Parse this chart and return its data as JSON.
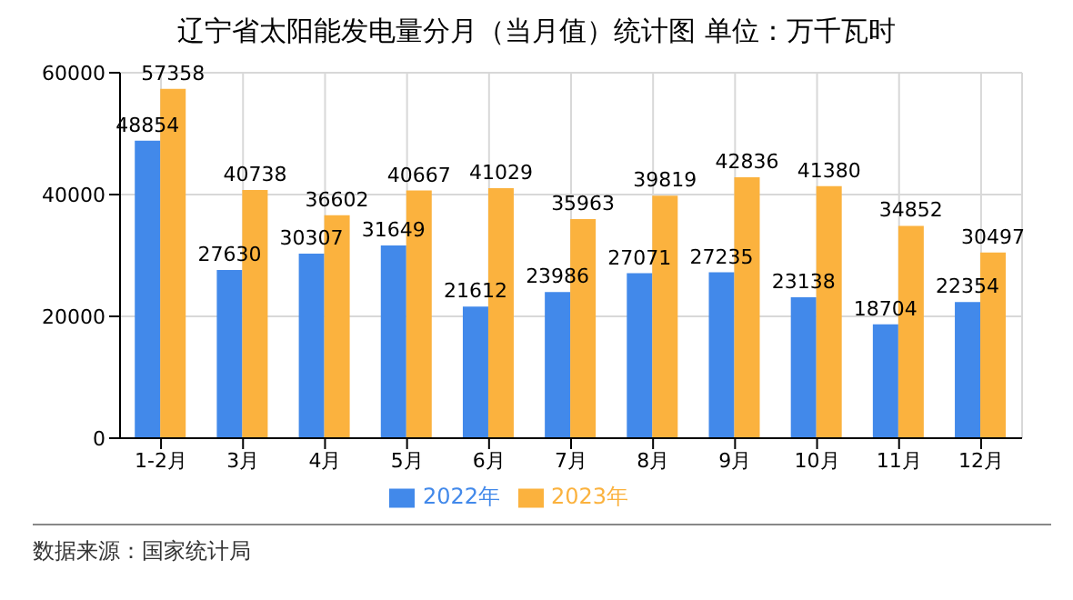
{
  "chart_data": {
    "type": "bar",
    "title": "辽宁省太阳能发电量分月（当月值）统计图 单位：万千瓦时",
    "categories": [
      "1-2月",
      "3月",
      "4月",
      "5月",
      "6月",
      "7月",
      "8月",
      "9月",
      "10月",
      "11月",
      "12月"
    ],
    "series": [
      {
        "name": "2022年",
        "color": "#4289ea",
        "values": [
          48854,
          27630,
          30307,
          31649,
          21612,
          23986,
          27071,
          27235,
          23138,
          18704,
          22354
        ]
      },
      {
        "name": "2023年",
        "color": "#fbb23e",
        "values": [
          57358,
          40738,
          36602,
          40667,
          41029,
          35963,
          39819,
          42836,
          41380,
          34852,
          30497
        ]
      }
    ],
    "ylim": [
      0,
      60000
    ],
    "yticks": [
      0,
      20000,
      40000,
      60000
    ],
    "grid": true,
    "legend": "bottom",
    "data_labels": true,
    "annotations": [
      "数据来源：国家统计局"
    ]
  }
}
